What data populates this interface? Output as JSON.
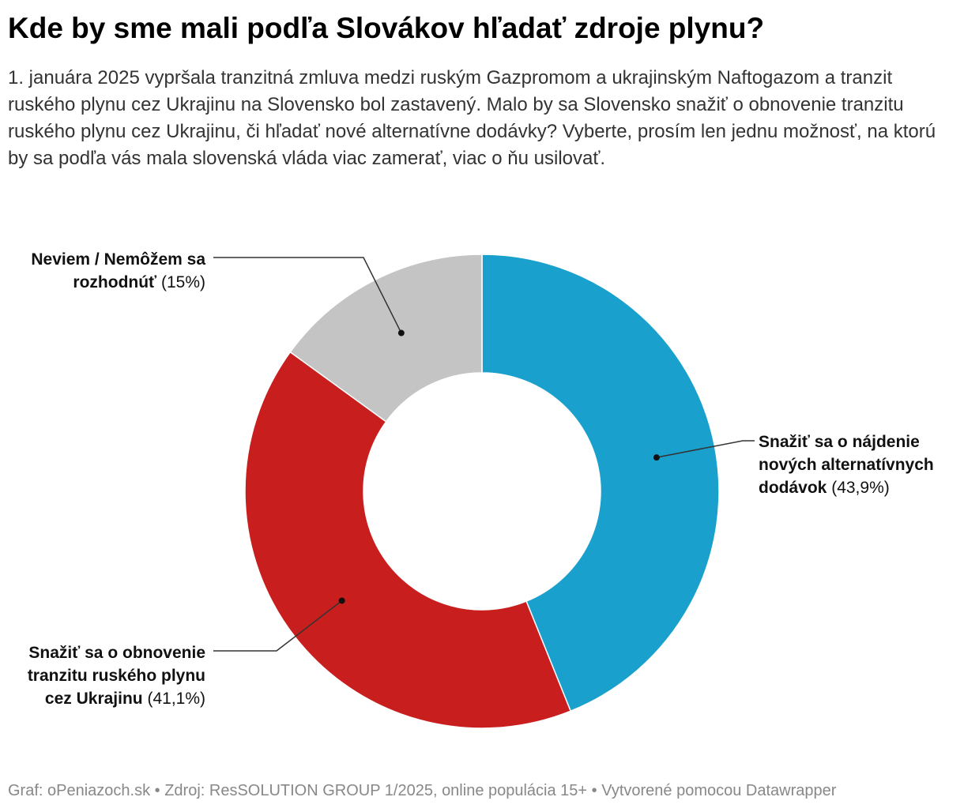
{
  "title": "Kde by sme mali podľa Slovákov hľadať zdroje plynu?",
  "subtitle": "1. januára 2025 vypršala tranzitná zmluva medzi ruským Gazpromom a ukrajinským Naftogazom a tranzit ruského plynu cez Ukrajinu na Slovensko bol zastavený. Malo by sa Slovensko snažiť o obnovenie tranzitu ruského plynu cez Ukrajinu, či hľadať nové alternatívne dodávky? Vyberte, prosím len jednu možnosť, na ktorú by sa podľa vás mala slovenská vláda viac zamerať, viac o ňu usilovať.",
  "footer": "Graf: oPeniazoch.sk • Zdroj: ResSOLUTION GROUP 1/2025, online populácia 15+ • Vytvorené pomocou Datawrapper",
  "chart_data": {
    "type": "pie",
    "variant": "donut",
    "title": "Kde by sme mali podľa Slovákov hľadať zdroje plynu?",
    "slices": [
      {
        "label": "Snažiť sa o nájdenie nových alternatívnych dodávok",
        "value": 43.9,
        "value_label": "(43,9%)",
        "color": "#1aa0cd"
      },
      {
        "label": "Snažiť sa o obnovenie tranzitu ruského plynu cez Ukrajinu",
        "value": 41.1,
        "value_label": "(41,1%)",
        "color": "#c81e1e"
      },
      {
        "label": "Neviem / Nemôžem sa rozhodnúť",
        "value": 15,
        "value_label": "(15%)",
        "color": "#c4c4c4"
      }
    ]
  }
}
